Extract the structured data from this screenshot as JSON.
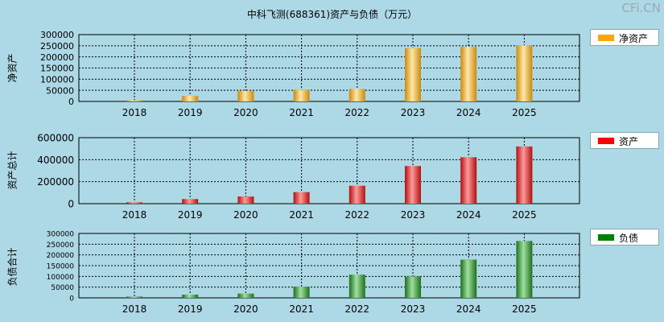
{
  "title": "中科飞测(688361)资产与负债（万元）",
  "watermark": "CFi.CN",
  "chart_data": [
    {
      "type": "bar",
      "ylabel": "净资产",
      "categories": [
        "2018",
        "2019",
        "2020",
        "2021",
        "2022",
        "2023",
        "2024",
        "2025"
      ],
      "series": [
        {
          "name": "净资产",
          "values": [
            5000,
            25000,
            48000,
            52000,
            56000,
            240000,
            245000,
            252000
          ]
        }
      ],
      "ylim": [
        0,
        300000
      ],
      "yticks": [
        "300000",
        "250000",
        "200000",
        "150000",
        "100000",
        "50000",
        "0"
      ],
      "legend_color": "#ffa500",
      "bar_light": "#ffe8a8",
      "bar_dark": "#c98a10",
      "grid": true,
      "legend_position": "right"
    },
    {
      "type": "bar",
      "ylabel": "资产总计",
      "categories": [
        "2018",
        "2019",
        "2020",
        "2021",
        "2022",
        "2023",
        "2024",
        "2025"
      ],
      "series": [
        {
          "name": "资产",
          "values": [
            12000,
            42000,
            65000,
            105000,
            163000,
            342000,
            422000,
            520000
          ]
        }
      ],
      "ylim": [
        0,
        600000
      ],
      "yticks": [
        "600000",
        "400000",
        "200000",
        "0"
      ],
      "legend_color": "#ff0000",
      "bar_light": "#ff9a9a",
      "bar_dark": "#b01010",
      "grid": true,
      "legend_position": "right"
    },
    {
      "type": "bar",
      "ylabel": "负债合计",
      "categories": [
        "2018",
        "2019",
        "2020",
        "2021",
        "2022",
        "2023",
        "2024",
        "2025"
      ],
      "series": [
        {
          "name": "负债",
          "values": [
            6000,
            15000,
            20000,
            52000,
            108000,
            100000,
            178000,
            265000
          ]
        }
      ],
      "ylim": [
        0,
        300000
      ],
      "yticks": [
        "300000",
        "250000",
        "200000",
        "150000",
        "100000",
        "50000",
        "0"
      ],
      "legend_color": "#008000",
      "bar_light": "#9ee09e",
      "bar_dark": "#1f6f1f",
      "grid": true,
      "legend_position": "right"
    }
  ]
}
